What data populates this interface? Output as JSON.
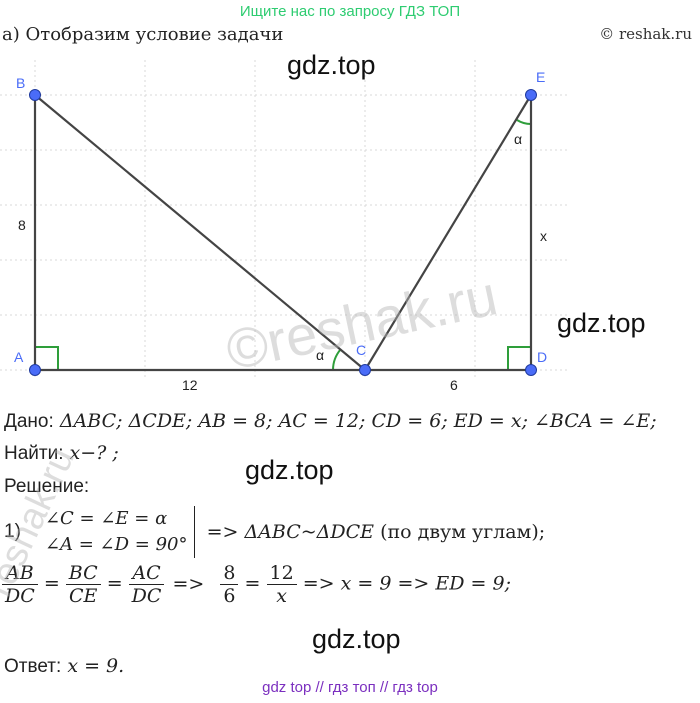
{
  "header": {
    "banner": "Ищите нас по запросу ГДЗ ТОП",
    "copyright": "© reshak.ru",
    "part_label": "а) Отобразим условие задачи"
  },
  "watermarks": {
    "gdz": "gdz.top",
    "reshak_center": "©reshak.ru",
    "reshak_left": "reshak.ru"
  },
  "diagram": {
    "points": {
      "A": "A",
      "B": "B",
      "C": "C",
      "D": "D",
      "E": "E"
    },
    "labels": {
      "AB": "8",
      "AC": "12",
      "CD": "6",
      "ED": "x",
      "angle_C": "α",
      "angle_E": "α"
    },
    "colors": {
      "point_fill": "#4a6cf7",
      "segment": "#444444",
      "right_angle": "#2e9e3a",
      "angle_arc": "#2e9e3a",
      "point_label": "#4a6cf7",
      "grid": "#d9d9d9"
    }
  },
  "solution": {
    "given_label": "Дано:",
    "given": "ΔABC; ΔCDE; AB = 8; AC = 12; CD = 6; ED = x; ∠BCA = ∠E;",
    "find_label": "Найти:",
    "find": "x−? ;",
    "solution_label": "Решение:",
    "step_num": "1)",
    "step_line1": "∠C = ∠E = α",
    "step_line2": "∠A = ∠D = 90°",
    "step_result_arrow": "=>",
    "step_result": "ΔABC~ΔDCE",
    "step_reason": "(по двум углам);",
    "frac1_num": "AB",
    "frac1_den": "DC",
    "frac2_num": "BC",
    "frac2_den": "CE",
    "frac3_num": "AC",
    "frac3_den": "DC",
    "arrow": "=>",
    "frac4_num": "8",
    "frac4_den": "6",
    "frac5_num": "12",
    "frac5_den": "x",
    "eq_tail1": "x = 9",
    "eq_tail2": "ED = 9;",
    "answer_label": "Ответ:",
    "answer": "x = 9."
  },
  "footer": {
    "text": "gdz top  //  гдз топ  //  гдз top"
  }
}
